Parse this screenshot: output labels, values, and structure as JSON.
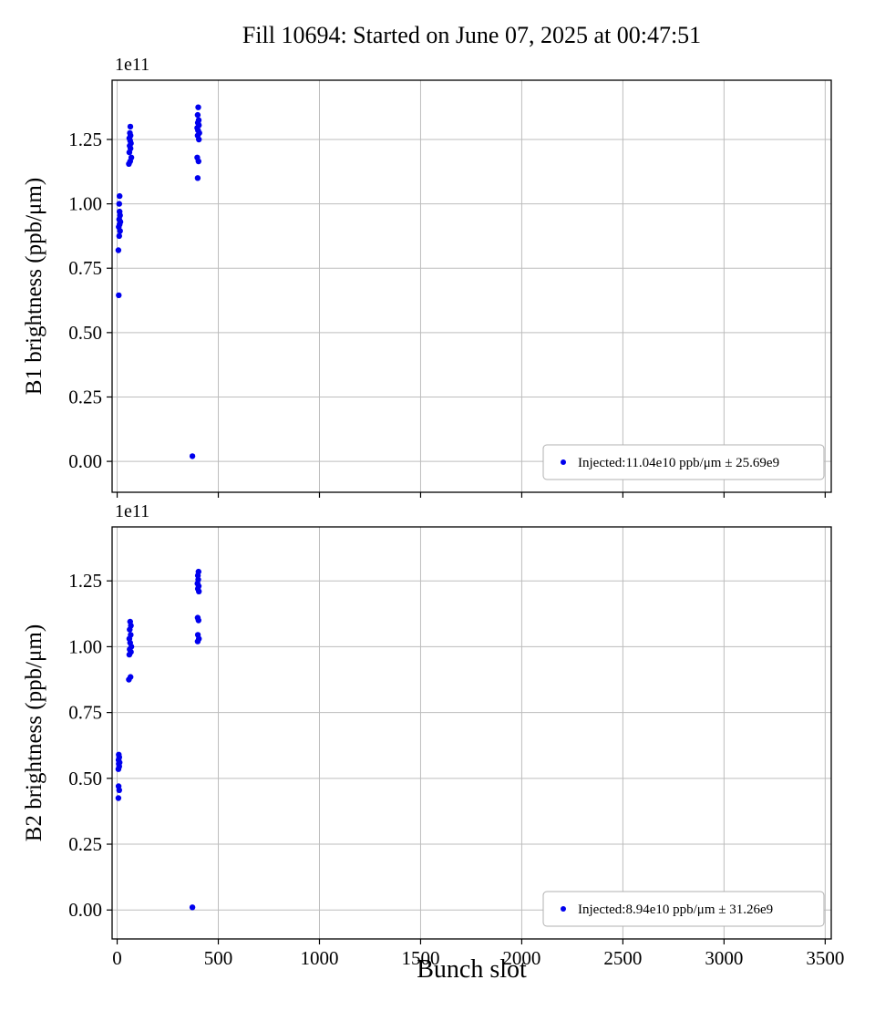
{
  "title": "Fill 10694: Started on June 07, 2025 at 00:47:51",
  "xlabel": "Bunch slot",
  "chart_data": [
    {
      "type": "scatter",
      "name": "B1",
      "ylabel": "B1 brightness (ppb/μm)",
      "offset_text": "1e11",
      "grid": true,
      "legend_position": "lower right",
      "legend_label": "Injected:11.04e10 ppb/μm ± 25.69e9",
      "marker_color": "#0000ee",
      "grid_color": "#bdbdbd",
      "xlim": [
        -25,
        3530
      ],
      "ylim": [
        -0.12,
        1.48
      ],
      "xticks": [
        0,
        500,
        1000,
        1500,
        2000,
        2500,
        3000,
        3500
      ],
      "xtick_labels": [
        "0",
        "500",
        "1000",
        "1500",
        "2000",
        "2500",
        "3000",
        "3500"
      ],
      "show_xtick_labels": false,
      "yticks": [
        0,
        0.25,
        0.5,
        0.75,
        1.0,
        1.25
      ],
      "ytick_labels": [
        "0.00",
        "0.25",
        "0.50",
        "0.75",
        "1.00",
        "1.25"
      ],
      "points": [
        [
          8,
          0.645
        ],
        [
          6,
          0.82
        ],
        [
          10,
          0.875
        ],
        [
          14,
          0.895
        ],
        [
          8,
          0.91
        ],
        [
          12,
          0.92
        ],
        [
          16,
          0.93
        ],
        [
          10,
          0.94
        ],
        [
          14,
          0.955
        ],
        [
          12,
          0.97
        ],
        [
          10,
          1.0
        ],
        [
          12,
          1.03
        ],
        [
          58,
          1.155
        ],
        [
          64,
          1.165
        ],
        [
          70,
          1.18
        ],
        [
          60,
          1.2
        ],
        [
          66,
          1.215
        ],
        [
          62,
          1.225
        ],
        [
          68,
          1.235
        ],
        [
          64,
          1.245
        ],
        [
          60,
          1.255
        ],
        [
          66,
          1.265
        ],
        [
          63,
          1.275
        ],
        [
          65,
          1.3
        ],
        [
          372,
          0.02
        ],
        [
          398,
          1.1
        ],
        [
          402,
          1.165
        ],
        [
          396,
          1.18
        ],
        [
          404,
          1.25
        ],
        [
          398,
          1.265
        ],
        [
          406,
          1.275
        ],
        [
          400,
          1.285
        ],
        [
          396,
          1.295
        ],
        [
          404,
          1.305
        ],
        [
          399,
          1.315
        ],
        [
          403,
          1.325
        ],
        [
          398,
          1.345
        ],
        [
          401,
          1.375
        ]
      ]
    },
    {
      "type": "scatter",
      "name": "B2",
      "ylabel": "B2 brightness (ppb/μm)",
      "offset_text": "1e11",
      "grid": true,
      "legend_position": "lower right",
      "legend_label": "Injected:8.94e10 ppb/μm ± 31.26e9",
      "marker_color": "#0000ee",
      "grid_color": "#bdbdbd",
      "xlim": [
        -25,
        3530
      ],
      "ylim": [
        -0.11,
        1.455
      ],
      "xticks": [
        0,
        500,
        1000,
        1500,
        2000,
        2500,
        3000,
        3500
      ],
      "xtick_labels": [
        "0",
        "500",
        "1000",
        "1500",
        "2000",
        "2500",
        "3000",
        "3500"
      ],
      "show_xtick_labels": true,
      "yticks": [
        0,
        0.25,
        0.5,
        0.75,
        1.0,
        1.25
      ],
      "ytick_labels": [
        "0.00",
        "0.25",
        "0.50",
        "0.75",
        "1.00",
        "1.25"
      ],
      "points": [
        [
          6,
          0.425
        ],
        [
          10,
          0.455
        ],
        [
          7,
          0.47
        ],
        [
          6,
          0.535
        ],
        [
          10,
          0.545
        ],
        [
          8,
          0.555
        ],
        [
          12,
          0.56
        ],
        [
          7,
          0.57
        ],
        [
          10,
          0.58
        ],
        [
          8,
          0.59
        ],
        [
          58,
          0.875
        ],
        [
          66,
          0.885
        ],
        [
          60,
          0.97
        ],
        [
          68,
          0.98
        ],
        [
          62,
          0.99
        ],
        [
          70,
          1.0
        ],
        [
          64,
          1.015
        ],
        [
          60,
          1.03
        ],
        [
          67,
          1.045
        ],
        [
          62,
          1.065
        ],
        [
          68,
          1.08
        ],
        [
          64,
          1.095
        ],
        [
          372,
          0.01
        ],
        [
          398,
          1.02
        ],
        [
          404,
          1.03
        ],
        [
          399,
          1.045
        ],
        [
          402,
          1.1
        ],
        [
          398,
          1.11
        ],
        [
          404,
          1.21
        ],
        [
          399,
          1.22
        ],
        [
          403,
          1.23
        ],
        [
          397,
          1.24
        ],
        [
          401,
          1.255
        ],
        [
          399,
          1.27
        ],
        [
          402,
          1.285
        ]
      ]
    }
  ]
}
